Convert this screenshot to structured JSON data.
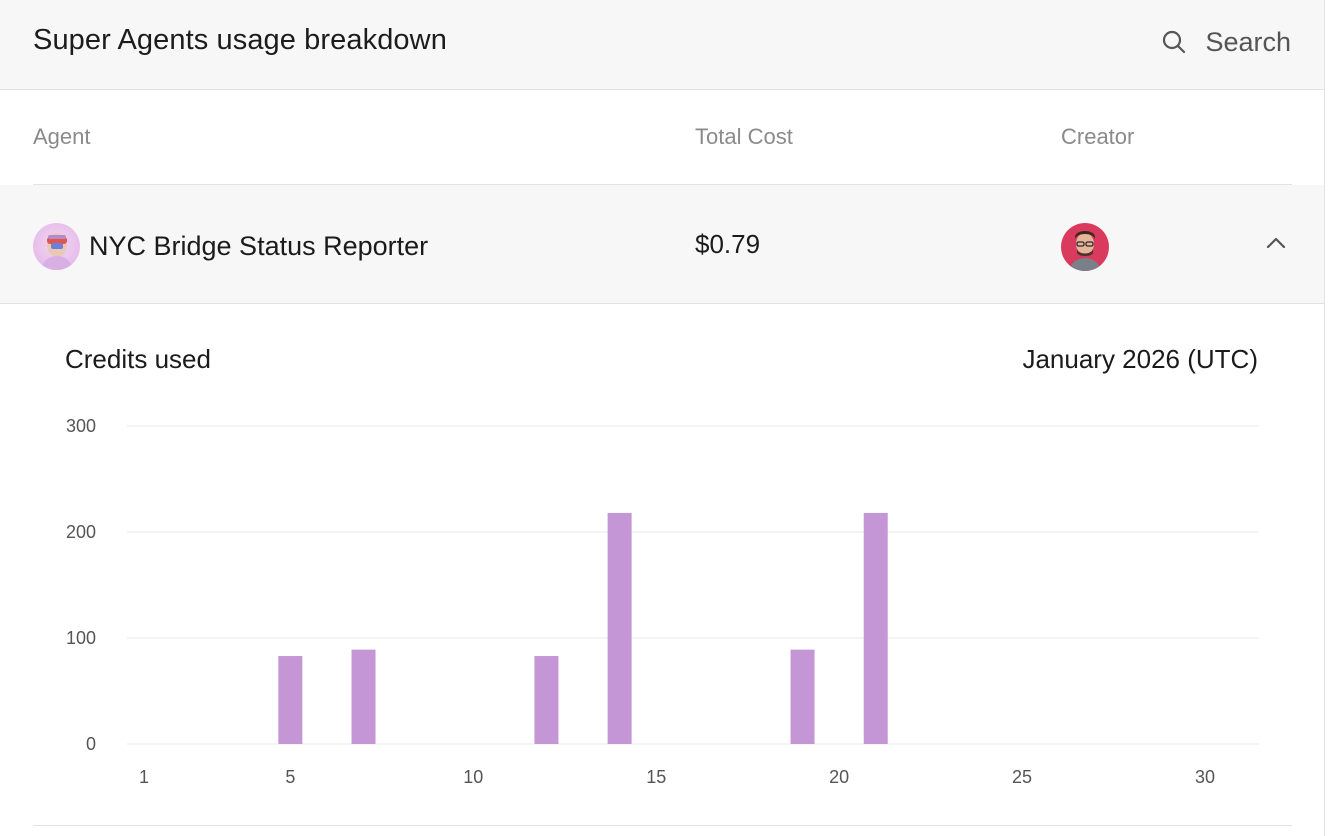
{
  "header": {
    "title": "Super Agents usage breakdown",
    "search_label": "Search",
    "search_icon": "search-icon"
  },
  "table": {
    "columns": [
      "Agent",
      "Total Cost",
      "Creator"
    ],
    "rows": [
      {
        "agent": "NYC Bridge Status Reporter",
        "total_cost": "$0.79",
        "expanded": true
      }
    ]
  },
  "details": {
    "chart_title": "Credits used",
    "period": "January 2026 (UTC)"
  },
  "colors": {
    "bar": "#c596d6",
    "grid": "#e9e9e9",
    "tick": "#555555"
  },
  "chart_data": {
    "type": "bar",
    "title": "Credits used",
    "xlabel": "",
    "ylabel": "",
    "x": [
      1,
      2,
      3,
      4,
      5,
      6,
      7,
      8,
      9,
      10,
      11,
      12,
      13,
      14,
      15,
      16,
      17,
      18,
      19,
      20,
      21,
      22,
      23,
      24,
      25,
      26,
      27,
      28,
      29,
      30,
      31
    ],
    "values": [
      0,
      0,
      0,
      0,
      83,
      0,
      89,
      0,
      0,
      0,
      0,
      83,
      0,
      218,
      0,
      0,
      0,
      0,
      89,
      0,
      218,
      0,
      0,
      0,
      0,
      0,
      0,
      0,
      0,
      0,
      0
    ],
    "x_ticks": [
      1,
      5,
      10,
      15,
      20,
      25,
      30
    ],
    "y_ticks": [
      0,
      100,
      200,
      300
    ],
    "ylim": [
      0,
      300
    ],
    "grid": true
  }
}
